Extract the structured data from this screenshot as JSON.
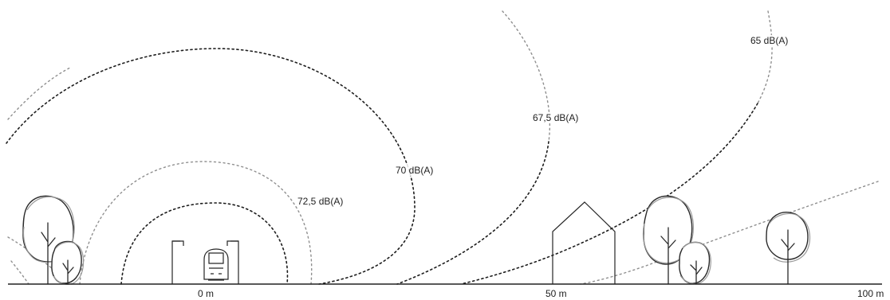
{
  "noise_levels": {
    "level_72_5": "72,5 dB(A)",
    "level_70": "70 dB(A)",
    "level_67_5": "67,5 dB(A)",
    "level_65": "65 dB(A)"
  },
  "distance_axis": {
    "zero": "0 m",
    "fifty": "50 m",
    "hundred": "100 m"
  },
  "colors": {
    "line": "#1e1e1e",
    "light_line": "#8f8f8f",
    "background": "#ffffff"
  }
}
